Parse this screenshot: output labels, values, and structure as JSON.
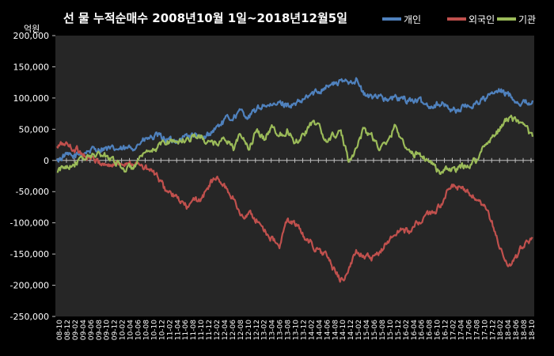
{
  "chart_data": {
    "type": "line",
    "title": "선 물 누적순매수 2008년10월 1일~2018년12월5일",
    "unit_label": "억원",
    "ylim": [
      -250000,
      200000
    ],
    "y_ticks": [
      200000,
      150000,
      100000,
      50000,
      0,
      -50000,
      -100000,
      -150000,
      -200000,
      -250000
    ],
    "y_tick_labels": [
      "200,000",
      "150,000",
      "100,000",
      "50,000",
      "0",
      "-50,000",
      "-100,000",
      "-150,000",
      "-200,000",
      "-250,000"
    ],
    "x_tick_labels": [
      "08-10",
      "08-12",
      "09-02",
      "09-04",
      "09-06",
      "09-08",
      "09-10",
      "09-12",
      "10-02",
      "10-04",
      "10-06",
      "10-08",
      "10-10",
      "10-12",
      "11-02",
      "11-04",
      "11-06",
      "11-08",
      "11-10",
      "11-12",
      "12-02",
      "12-04",
      "12-06",
      "12-08",
      "12-10",
      "12-12",
      "13-02",
      "13-04",
      "13-06",
      "13-08",
      "13-10",
      "13-12",
      "14-02",
      "14-04",
      "14-06",
      "14-08",
      "14-10",
      "14-12",
      "15-02",
      "15-04",
      "15-06",
      "15-08",
      "15-10",
      "15-12",
      "16-02",
      "16-04",
      "16-06",
      "16-08",
      "16-10",
      "16-12",
      "17-02",
      "17-04",
      "17-06",
      "17-08",
      "17-10",
      "17-12",
      "18-02",
      "18-04",
      "18-06",
      "18-08",
      "18-10"
    ],
    "grid": false,
    "legend_position": "top-right",
    "series": [
      {
        "name": "개인",
        "color": "#4f81bd",
        "values": [
          0,
          8000,
          5000,
          10000,
          15000,
          18000,
          20000,
          17000,
          18000,
          17000,
          22000,
          30000,
          35000,
          38000,
          36000,
          30000,
          35000,
          40000,
          40000,
          32000,
          45000,
          55000,
          65000,
          70000,
          78000,
          70000,
          80000,
          90000,
          85000,
          92000,
          90000,
          88000,
          95000,
          105000,
          110000,
          120000,
          122000,
          125000,
          128000,
          130000,
          105000,
          100000,
          108000,
          95000,
          100000,
          98000,
          97000,
          95000,
          90000,
          88000,
          92000,
          85000,
          80000,
          85000,
          88000,
          95000,
          100000,
          108000,
          110000,
          105000,
          95000,
          92000,
          96000
        ]
      },
      {
        "name": "외국인",
        "color": "#c0504d",
        "values": [
          20000,
          28000,
          20000,
          15000,
          5000,
          0,
          -5000,
          -8000,
          -5000,
          -2000,
          -5000,
          -10000,
          -15000,
          -25000,
          -45000,
          -55000,
          -65000,
          -75000,
          -65000,
          -60000,
          -35000,
          -30000,
          -45000,
          -60000,
          -90000,
          -85000,
          -95000,
          -110000,
          -125000,
          -140000,
          -95000,
          -100000,
          -120000,
          -130000,
          -145000,
          -150000,
          -175000,
          -190000,
          -180000,
          -145000,
          -150000,
          -160000,
          -150000,
          -130000,
          -120000,
          -110000,
          -115000,
          -100000,
          -90000,
          -85000,
          -70000,
          -50000,
          -40000,
          -50000,
          -55000,
          -70000,
          -80000,
          -110000,
          -150000,
          -170000,
          -155000,
          -130000,
          -125000
        ]
      },
      {
        "name": "기관",
        "color": "#9bbb59",
        "values": [
          -20000,
          -10000,
          -5000,
          0,
          5000,
          10000,
          8000,
          5000,
          -5000,
          -15000,
          -10000,
          5000,
          10000,
          20000,
          30000,
          32000,
          30000,
          35000,
          40000,
          35000,
          25000,
          30000,
          35000,
          20000,
          40000,
          20000,
          45000,
          35000,
          55000,
          40000,
          50000,
          30000,
          40000,
          55000,
          60000,
          30000,
          40000,
          45000,
          0,
          20000,
          50000,
          40000,
          20000,
          25000,
          55000,
          35000,
          10000,
          10000,
          5000,
          -5000,
          -20000,
          -15000,
          -15000,
          -10000,
          -5000,
          5000,
          30000,
          40000,
          55000,
          70000,
          60000,
          50000,
          38000
        ]
      }
    ]
  }
}
